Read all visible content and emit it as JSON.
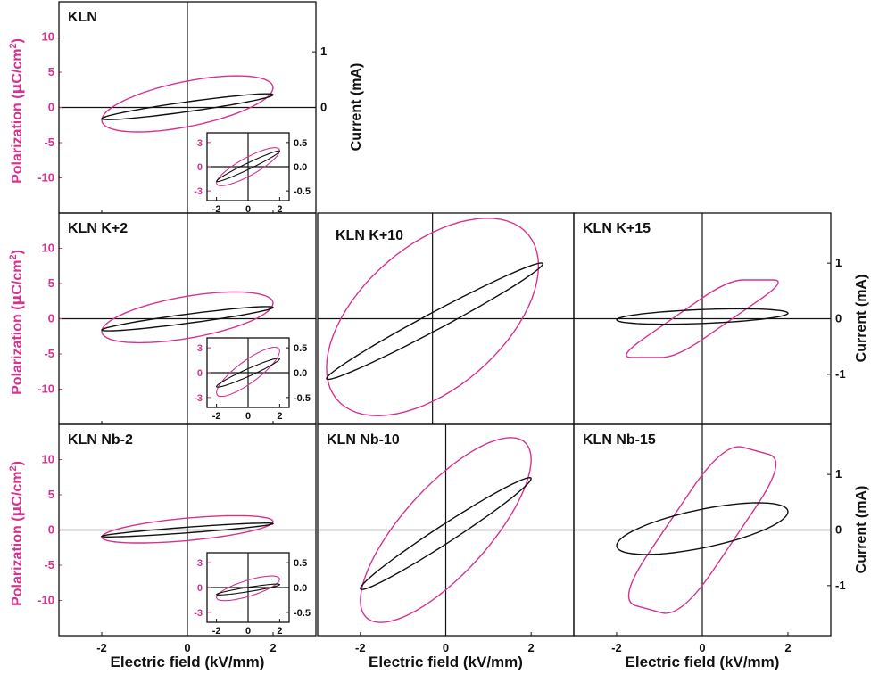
{
  "colors": {
    "polarization": "#d6338f",
    "current": "#111111",
    "axes": "#111111"
  },
  "labels": {
    "ylabel_left": "Polarization (μC/cm²)",
    "ylabel_left_text": "Polarization (",
    "ylabel_left_mu": "μ",
    "ylabel_left_unit": "C/cm",
    "ylabel_left_sup": "2",
    "ylabel_left_close": ")",
    "ylabel_right": "Current (mA)",
    "xlabel": "Electric field (kV/mm)"
  },
  "chart_data": [
    {
      "type": "line",
      "title": "KLN",
      "xlim": [
        -3,
        3
      ],
      "ylim": [
        -15,
        15
      ],
      "y2lim": [
        -1.9,
        1.9
      ],
      "xticks": [
        -2,
        0,
        2
      ],
      "yticks": [
        10,
        5,
        0,
        -5,
        -10
      ],
      "y2ticks": [
        1,
        0
      ],
      "series": [
        {
          "axis": "left",
          "shape": "ellipse",
          "params": {
            "x1": -2,
            "y1": -1.8,
            "x2": 2,
            "y2": 2.8,
            "width": 6.5
          }
        },
        {
          "axis": "left",
          "shape": "ellipse",
          "params": {
            "x1": -2,
            "y1": -1.6,
            "x2": 2,
            "y2": 1.8,
            "width": 1.4
          }
        }
      ],
      "inset": {
        "xlim": [
          -2.6,
          2.6
        ],
        "ylim": [
          -4.2,
          4.2
        ],
        "y2lim": [
          -0.7,
          0.7
        ],
        "xticks": [
          -2,
          0,
          2
        ],
        "yticks": [
          3,
          0,
          -3
        ],
        "y2ticks": [
          0.5,
          0.0,
          -0.5
        ],
        "y2ticklabels": [
          "0.5",
          "0.0",
          "-0.5"
        ],
        "series": [
          {
            "axis": "left",
            "shape": "ellipse",
            "params": {
              "x1": -2,
              "y1": -2.0,
              "x2": 2,
              "y2": 2.0,
              "width": 2.5
            }
          },
          {
            "axis": "right",
            "shape": "ellipse",
            "params": {
              "x1": -2,
              "y1": -0.3,
              "x2": 2,
              "y2": 0.32,
              "width": 0.14
            }
          }
        ]
      }
    },
    {
      "type": "line",
      "title": "KLN K+2",
      "xlim": [
        -3,
        3
      ],
      "ylim": [
        -15,
        15
      ],
      "y2lim": [
        -1.9,
        1.9
      ],
      "xticks": [
        -2,
        0,
        2
      ],
      "yticks": [
        10,
        5,
        0,
        -5,
        -10
      ],
      "y2ticks": [],
      "series": [
        {
          "axis": "left",
          "shape": "ellipse",
          "params": {
            "x1": -2,
            "y1": -1.8,
            "x2": 2,
            "y2": 2.2,
            "width": 6.0
          }
        },
        {
          "axis": "left",
          "shape": "ellipse",
          "params": {
            "x1": -2,
            "y1": -1.6,
            "x2": 2,
            "y2": 1.6,
            "width": 1.3
          }
        }
      ],
      "inset": {
        "xlim": [
          -2.6,
          2.6
        ],
        "ylim": [
          -4.2,
          4.2
        ],
        "y2lim": [
          -0.7,
          0.7
        ],
        "xticks": [
          -2,
          0,
          2
        ],
        "yticks": [
          3,
          0,
          -3
        ],
        "y2ticks": [
          0.5,
          0.0,
          -0.5
        ],
        "y2ticklabels": [
          "0.5",
          "0.0",
          "-0.5"
        ],
        "series": [
          {
            "axis": "left",
            "shape": "ellipse",
            "params": {
              "x1": -2,
              "y1": -2.4,
              "x2": 2,
              "y2": 2.6,
              "width": 3.2
            }
          },
          {
            "axis": "right",
            "shape": "ellipse",
            "params": {
              "x1": -2,
              "y1": -0.28,
              "x2": 2,
              "y2": 0.28,
              "width": 0.16
            }
          }
        ]
      }
    },
    {
      "type": "line",
      "title": "KLN K+10",
      "xlim": [
        -2.6,
        3.2
      ],
      "ylim": [
        -15,
        15
      ],
      "y2lim": [
        -1.9,
        1.9
      ],
      "xticks": [],
      "yticks": [],
      "y2ticks": [],
      "series": [
        {
          "axis": "left",
          "shape": "ellipse",
          "params": {
            "x1": -2.4,
            "y1": -7.0,
            "x2": 2.4,
            "y2": 7.5,
            "width": 24
          }
        },
        {
          "axis": "left",
          "shape": "ellipse",
          "params": {
            "x1": -2.4,
            "y1": -8.5,
            "x2": 2.5,
            "y2": 7.8,
            "width": 2.8
          }
        }
      ]
    },
    {
      "type": "line",
      "title": "KLN K+15",
      "xlim": [
        -3,
        3
      ],
      "ylim": [
        -15,
        15
      ],
      "y2lim": [
        -1.9,
        1.9
      ],
      "xticks": [],
      "yticks": [],
      "y2ticks": [
        1,
        0,
        -1
      ],
      "series": [
        {
          "axis": "left",
          "shape": "parallelogram",
          "params": {
            "pts": [
              [
                -2,
                -5.5
              ],
              [
                -0.6,
                -5.5
              ],
              [
                2,
                5.5
              ],
              [
                0.6,
                5.5
              ]
            ],
            "round": 0.25
          }
        },
        {
          "axis": "right",
          "shape": "ellipse",
          "params": {
            "x1": -2,
            "y1": -0.02,
            "x2": 2,
            "y2": 0.1,
            "width": 0.25
          }
        }
      ]
    },
    {
      "type": "line",
      "title": "KLN Nb-2",
      "xlim": [
        -3,
        3
      ],
      "ylim": [
        -15,
        15
      ],
      "y2lim": [
        -1.9,
        1.9
      ],
      "xticks": [
        -2,
        0,
        2
      ],
      "yticks": [
        10,
        5,
        0,
        -5,
        -10
      ],
      "y2ticks": [],
      "series": [
        {
          "axis": "left",
          "shape": "ellipse",
          "params": {
            "x1": -2,
            "y1": -1.0,
            "x2": 2,
            "y2": 1.2,
            "width": 3.2
          }
        },
        {
          "axis": "left",
          "shape": "ellipse",
          "params": {
            "x1": -2,
            "y1": -0.9,
            "x2": 2,
            "y2": 0.9,
            "width": 0.8
          }
        }
      ],
      "inset": {
        "xlim": [
          -2.6,
          2.6
        ],
        "ylim": [
          -4.2,
          4.2
        ],
        "y2lim": [
          -0.7,
          0.7
        ],
        "xticks": [
          -2,
          0,
          2
        ],
        "yticks": [
          3,
          0,
          -3
        ],
        "y2ticks": [
          0.5,
          0.0,
          -0.5
        ],
        "y2ticklabels": [
          "0.5",
          "0.0",
          "-0.5"
        ],
        "series": [
          {
            "axis": "left",
            "shape": "ellipse",
            "params": {
              "x1": -2,
              "y1": -1.2,
              "x2": 2,
              "y2": 1.0,
              "width": 2.0
            }
          },
          {
            "axis": "right",
            "shape": "ellipse",
            "params": {
              "x1": -2,
              "y1": -0.14,
              "x2": 2,
              "y2": 0.06,
              "width": 0.09
            }
          }
        ]
      }
    },
    {
      "type": "line",
      "title": "KLN Nb-10",
      "xlim": [
        -3,
        3
      ],
      "ylim": [
        -15,
        15
      ],
      "y2lim": [
        -1.9,
        1.9
      ],
      "xticks": [
        -2,
        0,
        2
      ],
      "yticks": [],
      "y2ticks": [],
      "series": [
        {
          "axis": "left",
          "shape": "ellipse",
          "params": {
            "x1": -2,
            "y1": -10,
            "x2": 2,
            "y2": 10,
            "width": 17
          }
        },
        {
          "axis": "left",
          "shape": "ellipse",
          "params": {
            "x1": -2,
            "y1": -8.3,
            "x2": 2,
            "y2": 7.3,
            "width": 3.0
          }
        }
      ]
    },
    {
      "type": "line",
      "title": "KLN Nb-15",
      "xlim": [
        -3,
        3
      ],
      "ylim": [
        -15,
        15
      ],
      "y2lim": [
        -1.9,
        1.9
      ],
      "xticks": [
        -2,
        0,
        2
      ],
      "yticks": [],
      "y2ticks": [
        1,
        0,
        -1
      ],
      "series": [
        {
          "axis": "left",
          "shape": "parallelogram",
          "params": {
            "pts": [
              [
                -2,
                -10
              ],
              [
                -0.5,
                -12.5
              ],
              [
                2,
                10
              ],
              [
                0.5,
                12.5
              ]
            ],
            "round": 0.3
          }
        },
        {
          "axis": "right",
          "shape": "ellipse",
          "params": {
            "x1": -2,
            "y1": -0.28,
            "x2": 2,
            "y2": 0.33,
            "width": 0.7
          }
        }
      ]
    }
  ]
}
